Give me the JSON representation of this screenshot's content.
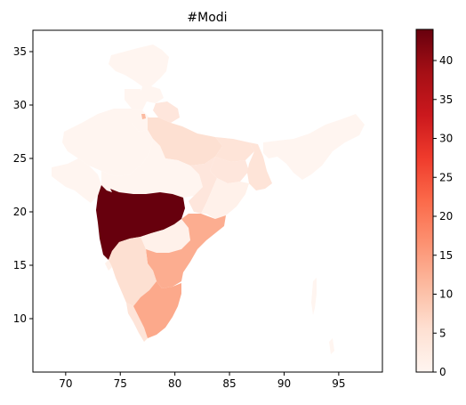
{
  "title": "#Modi",
  "x_ticks": [
    "70",
    "75",
    "80",
    "85",
    "90",
    "95"
  ],
  "y_ticks": [
    "10",
    "15",
    "20",
    "25",
    "30",
    "35"
  ],
  "colorbar": {
    "min": 0,
    "max": 44,
    "ticks": [
      "0",
      "5",
      "10",
      "15",
      "20",
      "25",
      "30",
      "35",
      "40"
    ],
    "colors": [
      "#fff5f0",
      "#fee0d2",
      "#fcbba1",
      "#fc9272",
      "#fb6a4a",
      "#ef3b2c",
      "#cb181d",
      "#a50f15",
      "#67000d"
    ]
  },
  "chart_data": {
    "type": "heatmap",
    "title": "#Modi",
    "xlim": [
      67,
      99
    ],
    "ylim": [
      5,
      37
    ],
    "regions": [
      {
        "id": "jammu-kashmir",
        "value": 1
      },
      {
        "id": "himachal-pradesh",
        "value": 1
      },
      {
        "id": "punjab",
        "value": 1
      },
      {
        "id": "haryana",
        "value": 1
      },
      {
        "id": "delhi",
        "value": 12
      },
      {
        "id": "uttarakhand",
        "value": 2
      },
      {
        "id": "uttar-pradesh",
        "value": 4
      },
      {
        "id": "rajasthan",
        "value": 1
      },
      {
        "id": "gujarat",
        "value": 1
      },
      {
        "id": "madhya-pradesh",
        "value": 1
      },
      {
        "id": "bihar",
        "value": 3
      },
      {
        "id": "jharkhand",
        "value": 2
      },
      {
        "id": "west-bengal",
        "value": 3
      },
      {
        "id": "chhattisgarh",
        "value": 2
      },
      {
        "id": "odisha",
        "value": 1
      },
      {
        "id": "maharashtra",
        "value": 44
      },
      {
        "id": "telangana",
        "value": 1
      },
      {
        "id": "andhra-pradesh",
        "value": 8
      },
      {
        "id": "karnataka",
        "value": 4
      },
      {
        "id": "goa",
        "value": 1
      },
      {
        "id": "kerala",
        "value": 3
      },
      {
        "id": "tamil-nadu",
        "value": 13
      },
      {
        "id": "northeast",
        "value": 1
      },
      {
        "id": "andaman-nicobar",
        "value": 0
      }
    ]
  }
}
